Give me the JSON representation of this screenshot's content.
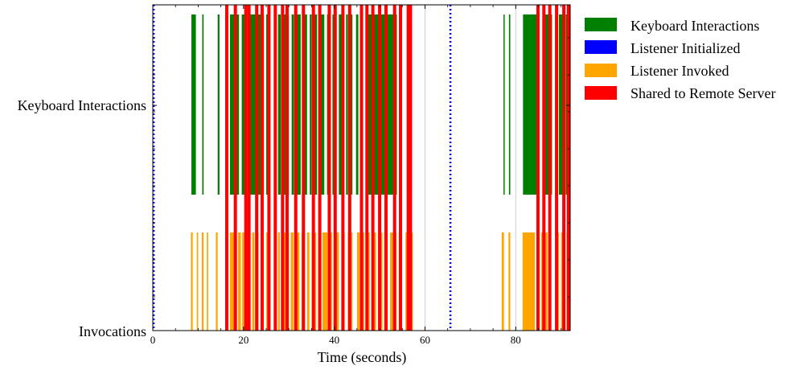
{
  "chart_data": {
    "type": "event-timeline",
    "title": "",
    "xlabel": "Time (seconds)",
    "ylabel": "",
    "xlim": [
      0,
      92
    ],
    "xticks": [
      0,
      20,
      40,
      60,
      80
    ],
    "xtick_labels": [
      "0",
      "20",
      "40",
      "60",
      "80"
    ],
    "vertical_gridlines_at": [
      60,
      80
    ],
    "rows": [
      "Keyboard Interactions",
      "Invocations"
    ],
    "legend_position": "outside-right-top",
    "series": [
      {
        "name": "Keyboard Interactions",
        "color": "#008000",
        "row": "Keyboard Interactions",
        "style": "bar",
        "intervals": [
          [
            8.5,
            9.5
          ],
          [
            10.9,
            11.2
          ],
          [
            14.3,
            14.7
          ],
          [
            16.2,
            16.4
          ],
          [
            17.0,
            18.0
          ],
          [
            18.5,
            19.0
          ],
          [
            19.6,
            20.3
          ],
          [
            21.3,
            24.5
          ],
          [
            25.0,
            25.5
          ],
          [
            26.7,
            27.0
          ],
          [
            27.6,
            28.2
          ],
          [
            28.9,
            30.0
          ],
          [
            30.6,
            31.1
          ],
          [
            31.7,
            32.6
          ],
          [
            33.2,
            34.0
          ],
          [
            34.6,
            35.0
          ],
          [
            35.6,
            36.2
          ],
          [
            37.0,
            37.8
          ],
          [
            38.4,
            39.0
          ],
          [
            39.6,
            40.0
          ],
          [
            41.0,
            42.0
          ],
          [
            42.6,
            43.0
          ],
          [
            43.6,
            44.0
          ],
          [
            44.8,
            45.3
          ],
          [
            47.0,
            53.8
          ],
          [
            56.0,
            56.5
          ],
          [
            77.3,
            77.5
          ],
          [
            78.5,
            78.8
          ],
          [
            81.6,
            85.0
          ],
          [
            86.5,
            88.0
          ],
          [
            89.5,
            90.5
          ],
          [
            91.0,
            92.0
          ]
        ]
      },
      {
        "name": "Listener Initialized",
        "color": "#0000ff",
        "style": "dotted-line",
        "times": [
          0.2,
          65.6
        ]
      },
      {
        "name": "Listener Invoked",
        "color": "#ffa500",
        "row": "Invocations",
        "style": "bar",
        "intervals": [
          [
            8.4,
            8.8
          ],
          [
            9.7,
            10.0
          ],
          [
            10.8,
            11.2
          ],
          [
            11.9,
            12.2
          ],
          [
            13.9,
            14.3
          ],
          [
            16.2,
            16.6
          ],
          [
            17.0,
            18.5
          ],
          [
            18.8,
            19.4
          ],
          [
            19.7,
            20.2
          ],
          [
            20.6,
            21.3
          ],
          [
            21.9,
            22.4
          ],
          [
            22.7,
            23.3
          ],
          [
            23.9,
            24.4
          ],
          [
            25.0,
            25.6
          ],
          [
            26.8,
            27.2
          ],
          [
            27.6,
            28.0
          ],
          [
            28.4,
            30.0
          ],
          [
            30.4,
            31.0
          ],
          [
            31.6,
            32.3
          ],
          [
            32.8,
            33.5
          ],
          [
            34.0,
            34.5
          ],
          [
            35.0,
            36.0
          ],
          [
            36.5,
            37.0
          ],
          [
            37.4,
            38.5
          ],
          [
            38.8,
            39.5
          ],
          [
            40.0,
            41.0
          ],
          [
            41.6,
            42.3
          ],
          [
            43.0,
            44.0
          ],
          [
            45.0,
            45.6
          ],
          [
            46.0,
            46.6
          ],
          [
            47.3,
            47.8
          ],
          [
            48.3,
            49.2
          ],
          [
            50.1,
            50.6
          ],
          [
            51.0,
            51.7
          ],
          [
            52.3,
            53.7
          ],
          [
            54.2,
            54.7
          ],
          [
            55.7,
            56.1
          ],
          [
            57.0,
            57.3
          ],
          [
            76.9,
            77.4
          ],
          [
            78.4,
            78.8
          ],
          [
            81.5,
            84.2
          ],
          [
            84.6,
            85.0
          ],
          [
            85.6,
            86.2
          ],
          [
            86.5,
            87.0
          ],
          [
            88.8,
            89.5
          ],
          [
            90.0,
            90.4
          ],
          [
            91.2,
            92.0
          ]
        ]
      },
      {
        "name": "Shared to Remote Server",
        "color": "#ff0000",
        "style": "full-height-line",
        "times": [
          16.3,
          18.2,
          20.5,
          21.2,
          22.9,
          24.1,
          25.6,
          27.0,
          28.6,
          29.6,
          31.5,
          33.2,
          35.4,
          36.8,
          38.9,
          40.2,
          41.9,
          43.4,
          46.0,
          47.2,
          48.5,
          50.0,
          51.4,
          53.3,
          54.6,
          56.3,
          56.8,
          84.9,
          86.2,
          87.5,
          89.0,
          90.6,
          91.6
        ]
      }
    ]
  }
}
